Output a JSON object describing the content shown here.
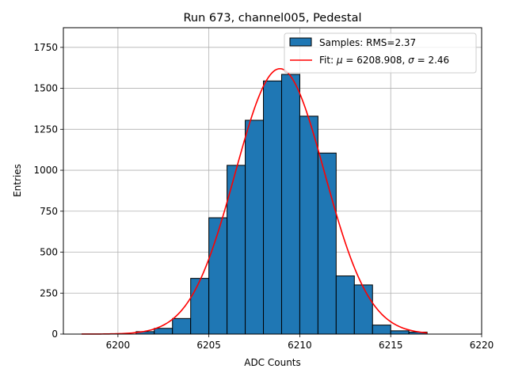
{
  "chart_data": {
    "type": "bar",
    "title": "Run 673, channel005, Pedestal",
    "xlabel": "ADC Counts",
    "ylabel": "Entries",
    "xlim": [
      6197,
      6220
    ],
    "ylim": [
      0,
      1870
    ],
    "xticks": [
      6200,
      6205,
      6210,
      6215,
      6220
    ],
    "yticks": [
      0,
      250,
      500,
      750,
      1000,
      1250,
      1500,
      1750
    ],
    "grid": true,
    "legend_position": "top-right",
    "histogram": {
      "name": "Samples: RMS=2.37",
      "color": "#1f77b4",
      "bin_edges": [
        6201,
        6202,
        6203,
        6204,
        6205,
        6206,
        6207,
        6208,
        6209,
        6210,
        6211,
        6212,
        6213,
        6214,
        6215,
        6216,
        6217
      ],
      "counts": [
        15,
        35,
        95,
        340,
        710,
        1030,
        1305,
        1545,
        1585,
        1330,
        1105,
        355,
        300,
        55,
        20,
        12
      ]
    },
    "fit": {
      "name_prefix": "Fit: ",
      "name_mu": "μ",
      "name_mid": " = 6208.908, ",
      "name_sigma": "σ",
      "name_end": " = 2.46",
      "color": "#ff0000",
      "mu": 6208.908,
      "sigma": 2.46,
      "amplitude": 1620,
      "x_range": [
        6198,
        6217
      ]
    }
  }
}
